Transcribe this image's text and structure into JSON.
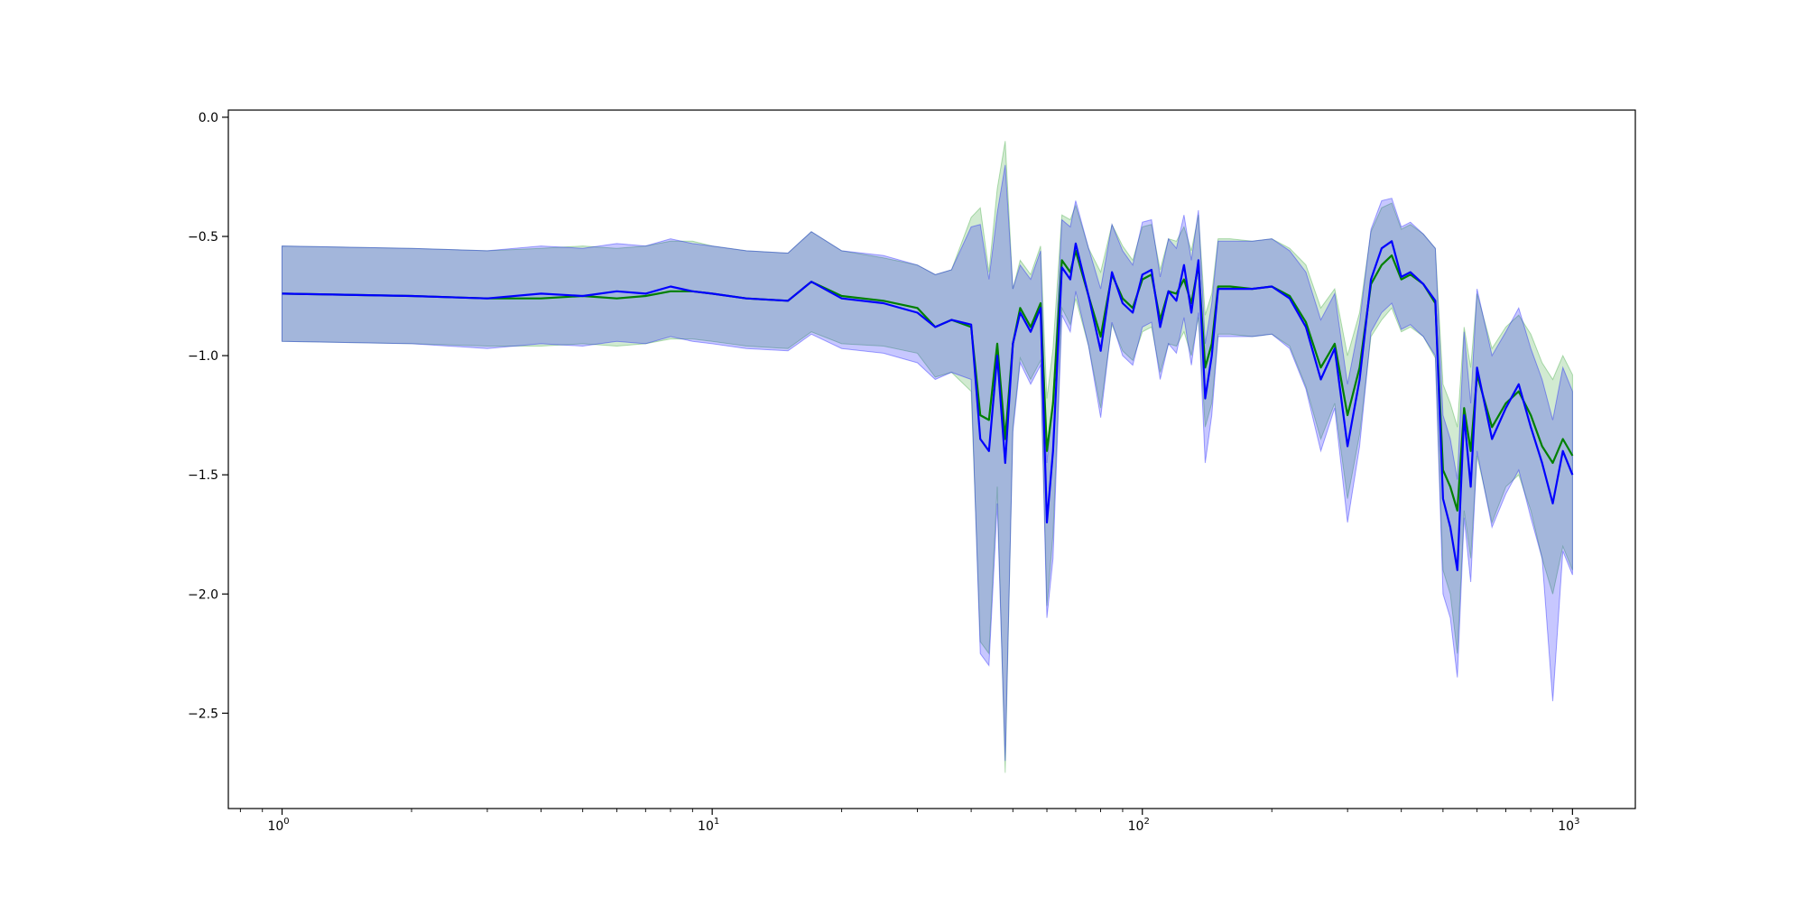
{
  "chart_data": {
    "type": "line",
    "title": "",
    "xlabel": "",
    "ylabel": "",
    "x_scale": "log",
    "xlim": [
      0.75,
      1400
    ],
    "ylim": [
      -2.9,
      0.03
    ],
    "x_ticks": [
      {
        "value": 1,
        "mantissa": "10",
        "exponent": "0"
      },
      {
        "value": 10,
        "mantissa": "10",
        "exponent": "1"
      },
      {
        "value": 100,
        "mantissa": "10",
        "exponent": "2"
      },
      {
        "value": 1000,
        "mantissa": "10",
        "exponent": "3"
      }
    ],
    "y_ticks": [
      {
        "value": 0.0,
        "label": "0.0"
      },
      {
        "value": -0.5,
        "label": "−0.5"
      },
      {
        "value": -1.0,
        "label": "−1.0"
      },
      {
        "value": -1.5,
        "label": "−1.5"
      },
      {
        "value": -2.0,
        "label": "−2.0"
      },
      {
        "value": -2.5,
        "label": "−2.5"
      }
    ],
    "grid": false,
    "legend": "none",
    "series": [
      {
        "color": "#008000",
        "band_color": "#2ca02c",
        "x": [
          1,
          2,
          3,
          4,
          5,
          6,
          7,
          8,
          9,
          10,
          12,
          15,
          17,
          20,
          25,
          30,
          33,
          36,
          40,
          42,
          44,
          46,
          48,
          50,
          52,
          55,
          58,
          60,
          62,
          65,
          68,
          70,
          75,
          80,
          85,
          90,
          95,
          100,
          105,
          110,
          115,
          120,
          125,
          130,
          135,
          140,
          145,
          150,
          160,
          180,
          200,
          220,
          240,
          260,
          280,
          300,
          320,
          340,
          360,
          380,
          400,
          420,
          450,
          480,
          500,
          520,
          540,
          560,
          580,
          600,
          650,
          700,
          750,
          800,
          850,
          900,
          950,
          1000
        ],
        "y": [
          -0.74,
          -0.75,
          -0.76,
          -0.76,
          -0.75,
          -0.76,
          -0.75,
          -0.73,
          -0.73,
          -0.74,
          -0.76,
          -0.77,
          -0.69,
          -0.75,
          -0.77,
          -0.8,
          -0.88,
          -0.85,
          -0.88,
          -1.25,
          -1.27,
          -0.95,
          -1.35,
          -0.95,
          -0.8,
          -0.88,
          -0.78,
          -1.4,
          -1.2,
          -0.6,
          -0.65,
          -0.56,
          -0.75,
          -0.92,
          -0.66,
          -0.76,
          -0.8,
          -0.68,
          -0.66,
          -0.85,
          -0.73,
          -0.74,
          -0.68,
          -0.78,
          -0.62,
          -1.05,
          -0.95,
          -0.71,
          -0.71,
          -0.72,
          -0.71,
          -0.75,
          -0.86,
          -1.05,
          -0.95,
          -1.25,
          -1.05,
          -0.7,
          -0.62,
          -0.58,
          -0.68,
          -0.66,
          -0.7,
          -0.78,
          -1.48,
          -1.55,
          -1.65,
          -1.22,
          -1.4,
          -1.08,
          -1.3,
          -1.2,
          -1.15,
          -1.25,
          -1.38,
          -1.45,
          -1.35,
          -1.42
        ],
        "upper": [
          -0.54,
          -0.55,
          -0.56,
          -0.55,
          -0.54,
          -0.55,
          -0.54,
          -0.52,
          -0.52,
          -0.54,
          -0.56,
          -0.57,
          -0.48,
          -0.56,
          -0.59,
          -0.62,
          -0.66,
          -0.64,
          -0.42,
          -0.38,
          -0.65,
          -0.3,
          -0.1,
          -0.72,
          -0.6,
          -0.66,
          -0.54,
          -1.18,
          -0.97,
          -0.41,
          -0.43,
          -0.37,
          -0.55,
          -0.65,
          -0.45,
          -0.54,
          -0.6,
          -0.46,
          -0.45,
          -0.64,
          -0.51,
          -0.52,
          -0.46,
          -0.56,
          -0.41,
          -0.83,
          -0.74,
          -0.51,
          -0.51,
          -0.52,
          -0.51,
          -0.55,
          -0.62,
          -0.8,
          -0.72,
          -1.0,
          -0.82,
          -0.48,
          -0.38,
          -0.36,
          -0.47,
          -0.45,
          -0.49,
          -0.55,
          -1.12,
          -1.2,
          -1.3,
          -0.88,
          -1.05,
          -0.74,
          -0.97,
          -0.88,
          -0.83,
          -0.91,
          -1.03,
          -1.1,
          -1.0,
          -1.08
        ],
        "lower": [
          -0.94,
          -0.95,
          -0.96,
          -0.96,
          -0.95,
          -0.96,
          -0.95,
          -0.93,
          -0.93,
          -0.94,
          -0.96,
          -0.97,
          -0.9,
          -0.95,
          -0.96,
          -0.99,
          -1.09,
          -1.07,
          -1.15,
          -2.2,
          -2.25,
          -1.55,
          -2.75,
          -1.3,
          -1.01,
          -1.1,
          -1.02,
          -2.05,
          -1.75,
          -0.8,
          -0.87,
          -0.76,
          -0.96,
          -1.22,
          -0.87,
          -0.98,
          -1.02,
          -0.9,
          -0.88,
          -1.07,
          -0.95,
          -0.96,
          -0.9,
          -1.0,
          -0.84,
          -1.3,
          -1.2,
          -0.91,
          -0.91,
          -0.92,
          -0.91,
          -0.96,
          -1.13,
          -1.35,
          -1.2,
          -1.6,
          -1.33,
          -0.92,
          -0.85,
          -0.8,
          -0.9,
          -0.88,
          -0.92,
          -1.01,
          -1.9,
          -2.0,
          -2.25,
          -1.65,
          -1.85,
          -1.42,
          -1.7,
          -1.55,
          -1.5,
          -1.65,
          -1.85,
          -2.0,
          -1.8,
          -1.9
        ]
      },
      {
        "color": "#0000ff",
        "band_color": "#0000ff",
        "x": [
          1,
          2,
          3,
          4,
          5,
          6,
          7,
          8,
          9,
          10,
          12,
          15,
          17,
          20,
          25,
          30,
          33,
          36,
          40,
          42,
          44,
          46,
          48,
          50,
          52,
          55,
          58,
          60,
          62,
          65,
          68,
          70,
          75,
          80,
          85,
          90,
          95,
          100,
          105,
          110,
          115,
          120,
          125,
          130,
          135,
          140,
          145,
          150,
          160,
          180,
          200,
          220,
          240,
          260,
          280,
          300,
          320,
          340,
          360,
          380,
          400,
          420,
          450,
          480,
          500,
          520,
          540,
          560,
          580,
          600,
          650,
          700,
          750,
          800,
          850,
          900,
          950,
          1000
        ],
        "y": [
          -0.74,
          -0.75,
          -0.76,
          -0.74,
          -0.75,
          -0.73,
          -0.74,
          -0.71,
          -0.73,
          -0.74,
          -0.76,
          -0.77,
          -0.69,
          -0.76,
          -0.78,
          -0.82,
          -0.88,
          -0.85,
          -0.87,
          -1.35,
          -1.4,
          -1.0,
          -1.45,
          -0.95,
          -0.82,
          -0.9,
          -0.8,
          -1.7,
          -1.4,
          -0.63,
          -0.68,
          -0.53,
          -0.75,
          -0.98,
          -0.65,
          -0.78,
          -0.82,
          -0.66,
          -0.64,
          -0.88,
          -0.73,
          -0.77,
          -0.62,
          -0.82,
          -0.6,
          -1.18,
          -1.0,
          -0.72,
          -0.72,
          -0.72,
          -0.71,
          -0.76,
          -0.88,
          -1.1,
          -0.97,
          -1.38,
          -1.1,
          -0.68,
          -0.55,
          -0.52,
          -0.67,
          -0.65,
          -0.7,
          -0.77,
          -1.6,
          -1.72,
          -1.9,
          -1.25,
          -1.55,
          -1.05,
          -1.35,
          -1.22,
          -1.12,
          -1.3,
          -1.45,
          -1.62,
          -1.4,
          -1.5
        ],
        "upper": [
          -0.54,
          -0.55,
          -0.56,
          -0.54,
          -0.55,
          -0.53,
          -0.54,
          -0.51,
          -0.53,
          -0.54,
          -0.56,
          -0.57,
          -0.48,
          -0.56,
          -0.58,
          -0.62,
          -0.66,
          -0.64,
          -0.46,
          -0.45,
          -0.68,
          -0.4,
          -0.2,
          -0.72,
          -0.62,
          -0.68,
          -0.56,
          -1.45,
          -1.18,
          -0.43,
          -0.46,
          -0.35,
          -0.55,
          -0.72,
          -0.45,
          -0.56,
          -0.62,
          -0.44,
          -0.43,
          -0.67,
          -0.51,
          -0.55,
          -0.41,
          -0.6,
          -0.39,
          -0.95,
          -0.78,
          -0.52,
          -0.52,
          -0.52,
          -0.51,
          -0.56,
          -0.65,
          -0.85,
          -0.74,
          -1.12,
          -0.86,
          -0.47,
          -0.35,
          -0.34,
          -0.46,
          -0.44,
          -0.49,
          -0.55,
          -1.25,
          -1.35,
          -1.52,
          -0.9,
          -1.2,
          -0.72,
          -1.0,
          -0.9,
          -0.8,
          -0.97,
          -1.1,
          -1.27,
          -1.05,
          -1.15
        ],
        "lower": [
          -0.94,
          -0.95,
          -0.97,
          -0.95,
          -0.96,
          -0.94,
          -0.95,
          -0.92,
          -0.94,
          -0.95,
          -0.97,
          -0.98,
          -0.91,
          -0.97,
          -0.99,
          -1.03,
          -1.1,
          -1.07,
          -1.1,
          -2.25,
          -2.3,
          -1.62,
          -2.7,
          -1.32,
          -1.03,
          -1.12,
          -1.04,
          -2.1,
          -1.85,
          -0.83,
          -0.9,
          -0.73,
          -0.96,
          -1.26,
          -0.86,
          -1.0,
          -1.04,
          -0.88,
          -0.86,
          -1.1,
          -0.95,
          -0.99,
          -0.84,
          -1.04,
          -0.82,
          -1.45,
          -1.25,
          -0.92,
          -0.92,
          -0.92,
          -0.91,
          -0.97,
          -1.14,
          -1.4,
          -1.22,
          -1.7,
          -1.38,
          -0.9,
          -0.82,
          -0.78,
          -0.89,
          -0.87,
          -0.92,
          -1.0,
          -2.0,
          -2.1,
          -2.35,
          -1.68,
          -1.95,
          -1.4,
          -1.72,
          -1.58,
          -1.48,
          -1.68,
          -1.85,
          -2.45,
          -1.82,
          -1.92
        ]
      }
    ]
  }
}
